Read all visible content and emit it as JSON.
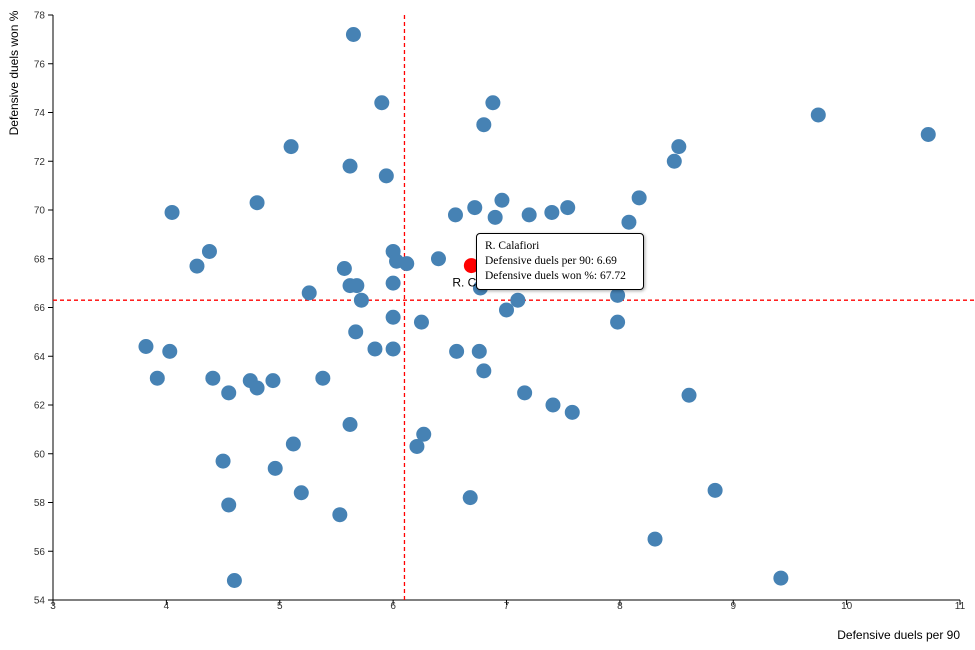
{
  "chart_data": {
    "type": "scatter",
    "xlabel": "Defensive duels per 90",
    "ylabel": "Defensive duels won %",
    "xlim": [
      3,
      11
    ],
    "ylim": [
      54,
      78
    ],
    "x_ticks": [
      "3",
      "4",
      "5",
      "6",
      "7",
      "8",
      "9",
      "10",
      "11"
    ],
    "y_ticks": [
      "54",
      "56",
      "58",
      "60",
      "62",
      "64",
      "66",
      "68",
      "70",
      "72",
      "74",
      "76",
      "78"
    ],
    "reference_lines": {
      "x": 6.1,
      "y": 66.3
    },
    "colors": {
      "points": "#4682b4",
      "highlight": "#ff0000",
      "reference": "#ff0000"
    },
    "highlight": {
      "name": "R. Calafiori",
      "label_visible": "R. C",
      "x": 6.69,
      "y": 67.72,
      "tooltip_line_1": "R. Calafiori",
      "tooltip_line_2": "Defensive duels per 90: 6.69",
      "tooltip_line_3": "Defensive duels won %: 67.72"
    },
    "points": [
      [
        5.65,
        77.2
      ],
      [
        5.9,
        74.4
      ],
      [
        6.88,
        74.4
      ],
      [
        6.8,
        73.5
      ],
      [
        9.75,
        73.9
      ],
      [
        10.72,
        73.1
      ],
      [
        5.1,
        72.6
      ],
      [
        8.52,
        72.6
      ],
      [
        8.48,
        72.0
      ],
      [
        5.62,
        71.8
      ],
      [
        5.94,
        71.4
      ],
      [
        4.05,
        69.9
      ],
      [
        4.8,
        70.3
      ],
      [
        6.55,
        69.8
      ],
      [
        6.72,
        70.1
      ],
      [
        6.96,
        70.4
      ],
      [
        6.9,
        69.7
      ],
      [
        7.2,
        69.8
      ],
      [
        7.4,
        69.9
      ],
      [
        7.54,
        70.1
      ],
      [
        8.08,
        69.5
      ],
      [
        8.17,
        70.5
      ],
      [
        4.38,
        68.3
      ],
      [
        4.27,
        67.7
      ],
      [
        6.0,
        68.3
      ],
      [
        6.03,
        67.9
      ],
      [
        6.12,
        67.8
      ],
      [
        6.4,
        68.0
      ],
      [
        5.57,
        67.6
      ],
      [
        5.62,
        66.9
      ],
      [
        5.68,
        66.9
      ],
      [
        5.26,
        66.6
      ],
      [
        5.72,
        66.3
      ],
      [
        6.0,
        67.0
      ],
      [
        6.77,
        66.8
      ],
      [
        7.1,
        66.3
      ],
      [
        7.0,
        65.9
      ],
      [
        7.98,
        66.5
      ],
      [
        7.98,
        65.4
      ],
      [
        6.0,
        65.6
      ],
      [
        6.25,
        65.4
      ],
      [
        5.67,
        65.0
      ],
      [
        3.82,
        64.4
      ],
      [
        4.03,
        64.2
      ],
      [
        5.84,
        64.3
      ],
      [
        6.0,
        64.3
      ],
      [
        6.56,
        64.2
      ],
      [
        6.76,
        64.2
      ],
      [
        3.92,
        63.1
      ],
      [
        4.41,
        63.1
      ],
      [
        4.74,
        63.0
      ],
      [
        4.94,
        63.0
      ],
      [
        5.38,
        63.1
      ],
      [
        6.8,
        63.4
      ],
      [
        4.55,
        62.5
      ],
      [
        4.8,
        62.7
      ],
      [
        7.16,
        62.5
      ],
      [
        7.41,
        62.0
      ],
      [
        7.58,
        61.7
      ],
      [
        8.61,
        62.4
      ],
      [
        5.62,
        61.2
      ],
      [
        5.12,
        60.4
      ],
      [
        6.27,
        60.8
      ],
      [
        6.21,
        60.3
      ],
      [
        4.5,
        59.7
      ],
      [
        4.96,
        59.4
      ],
      [
        5.19,
        58.4
      ],
      [
        6.68,
        58.2
      ],
      [
        4.55,
        57.9
      ],
      [
        5.53,
        57.5
      ],
      [
        8.84,
        58.5
      ],
      [
        8.31,
        56.5
      ],
      [
        4.6,
        54.8
      ],
      [
        9.42,
        54.9
      ]
    ]
  }
}
